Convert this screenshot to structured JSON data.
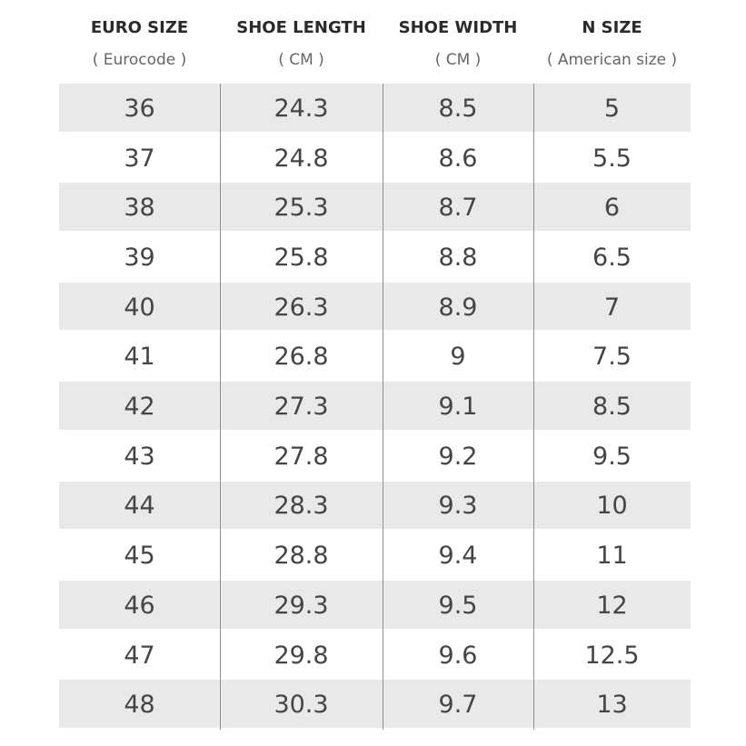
{
  "table": {
    "header": [
      {
        "title": "EURO SIZE",
        "sub": "( Eurocode )"
      },
      {
        "title": "SHOE LENGTH",
        "sub": "( CM )"
      },
      {
        "title": "SHOE WIDTH",
        "sub": "( CM )"
      },
      {
        "title": "N SIZE",
        "sub": "( American size )"
      }
    ],
    "rows": [
      [
        "36",
        "24.3",
        "8.5",
        "5"
      ],
      [
        "37",
        "24.8",
        "8.6",
        "5.5"
      ],
      [
        "38",
        "25.3",
        "8.7",
        "6"
      ],
      [
        "39",
        "25.8",
        "8.8",
        "6.5"
      ],
      [
        "40",
        "26.3",
        "8.9",
        "7"
      ],
      [
        "41",
        "26.8",
        "9",
        "7.5"
      ],
      [
        "42",
        "27.3",
        "9.1",
        "8.5"
      ],
      [
        "43",
        "27.8",
        "9.2",
        "9.5"
      ],
      [
        "44",
        "28.3",
        "9.3",
        "10"
      ],
      [
        "45",
        "28.8",
        "9.4",
        "11"
      ],
      [
        "46",
        "29.3",
        "9.5",
        "12"
      ],
      [
        "47",
        "29.8",
        "9.6",
        "12.5"
      ],
      [
        "48",
        "30.3",
        "9.7",
        "13"
      ]
    ]
  }
}
